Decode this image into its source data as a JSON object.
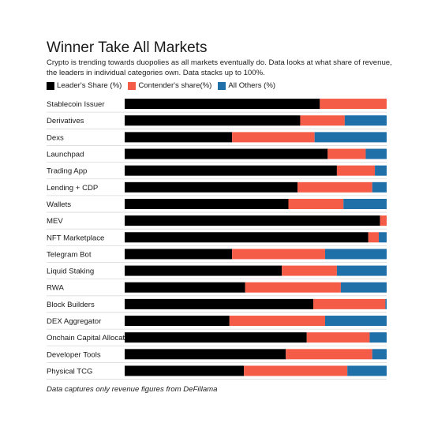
{
  "title": "Winner Take All Markets",
  "subtitle": "Crypto is trending towards duopolies as all markets eventually do. Data looks at what share of revenue, the leaders in individual categories own. Data stacks up to 100%.",
  "note": "Data captures only revenue figures from DeFillama",
  "colors": {
    "leader": "#000000",
    "contender": "#f55c47",
    "others": "#1f6fa8"
  },
  "chart_data": {
    "type": "bar",
    "orientation": "horizontal",
    "stacked": true,
    "title": "Winner Take All Markets",
    "xlim": [
      0,
      100
    ],
    "categories": [
      "Stablecoin Issuer",
      "Derivatives",
      "Dexs",
      "Launchpad",
      "Trading App",
      "Lending + CDP",
      "Wallets",
      "MEV",
      "NFT Marketplace",
      "Telegram Bot",
      "Liquid Staking",
      "RWA",
      "Block Builders",
      "DEX Aggregator",
      "Onchain Capital Allocator",
      "Developer Tools",
      "Physical TCG"
    ],
    "series": [
      {
        "name": "Leader's Share (%)",
        "values": [
          74.5,
          67,
          41,
          77.5,
          81,
          66,
          62.5,
          97.5,
          93,
          41,
          60,
          46,
          72,
          40,
          69.5,
          61.5,
          45.5
        ]
      },
      {
        "name": "Contender's share(%)",
        "values": [
          25.5,
          17,
          31.5,
          14.5,
          14.5,
          28.5,
          21,
          2.5,
          4,
          35.5,
          21,
          36.5,
          27.5,
          36.5,
          24,
          33,
          39.5
        ]
      },
      {
        "name": "All Others (%)",
        "values": [
          0,
          16,
          27.5,
          8,
          4.5,
          5.5,
          16.5,
          0,
          3,
          23.5,
          19,
          17.5,
          0.5,
          23.5,
          6.5,
          5.5,
          15
        ]
      }
    ],
    "legend_position": "top-left",
    "grid": false
  }
}
